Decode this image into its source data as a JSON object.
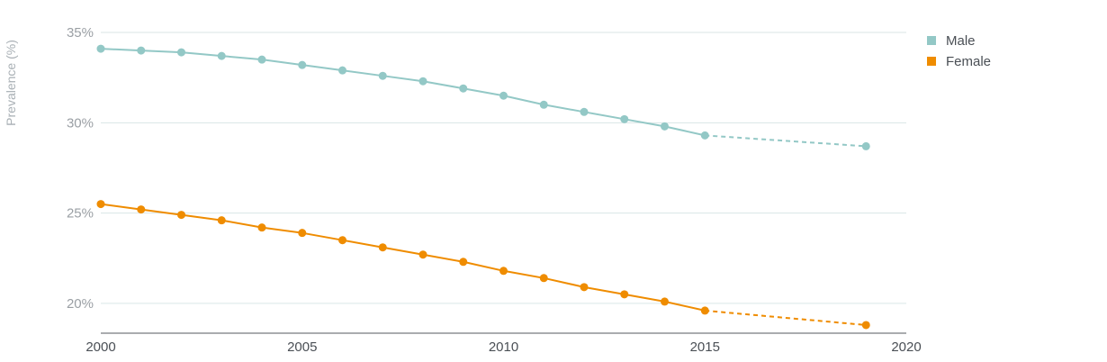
{
  "chart_data": {
    "type": "line",
    "ylabel": "Prevalence (%)",
    "xlim": [
      2000,
      2020
    ],
    "ylim": [
      18,
      36
    ],
    "xticks": [
      2000,
      2005,
      2010,
      2015,
      2020
    ],
    "yticks": [
      20,
      25,
      30,
      35
    ],
    "ytick_labels": [
      "20%",
      "25%",
      "30%",
      "35%"
    ],
    "grid": "horizontal",
    "legend_position": "top-right",
    "projection_start": 2015,
    "series": [
      {
        "name": "Male",
        "color": "#93c8c6",
        "x": [
          2000,
          2001,
          2002,
          2003,
          2004,
          2005,
          2006,
          2007,
          2008,
          2009,
          2010,
          2011,
          2012,
          2013,
          2014,
          2015,
          2019
        ],
        "values": [
          34.1,
          34.0,
          33.9,
          33.7,
          33.5,
          33.2,
          32.9,
          32.6,
          32.3,
          31.9,
          31.5,
          31.0,
          30.6,
          30.2,
          29.8,
          29.3,
          28.7
        ]
      },
      {
        "name": "Female",
        "color": "#ef8c00",
        "x": [
          2000,
          2001,
          2002,
          2003,
          2004,
          2005,
          2006,
          2007,
          2008,
          2009,
          2010,
          2011,
          2012,
          2013,
          2014,
          2015,
          2019
        ],
        "values": [
          25.5,
          25.2,
          24.9,
          24.6,
          24.2,
          23.9,
          23.5,
          23.1,
          22.7,
          22.3,
          21.8,
          21.4,
          20.9,
          20.5,
          20.1,
          19.6,
          18.8
        ]
      }
    ]
  },
  "colors": {
    "grid": "#d9e6e6",
    "axis": "#555a5f",
    "ytick_text": "#9a9fa4",
    "xtick_text": "#4a4f55",
    "ylabel_text": "#a9b0b5"
  }
}
